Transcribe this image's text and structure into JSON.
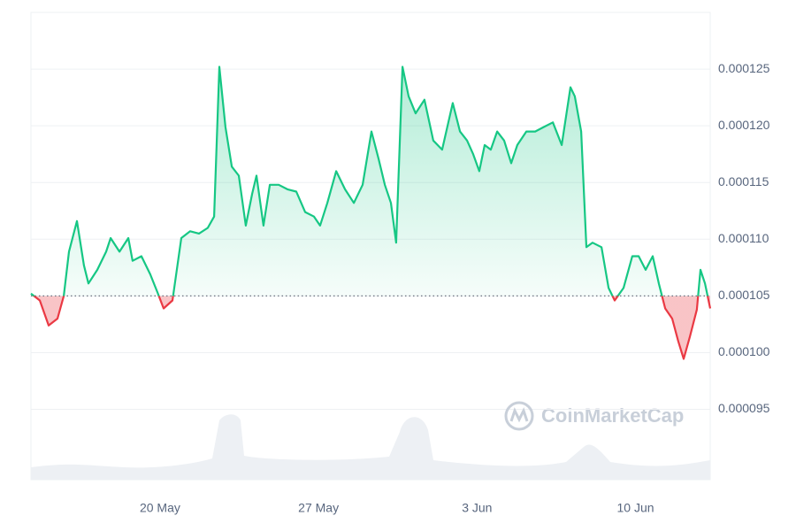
{
  "chart_data": {
    "type": "baseline-line",
    "x": [
      0,
      0.39,
      0.78,
      1.17,
      1.45,
      1.68,
      2.03,
      2.34,
      2.54,
      2.93,
      3.32,
      3.52,
      3.91,
      4.3,
      4.49,
      4.88,
      5.27,
      5.59,
      5.86,
      6.25,
      6.64,
      7.03,
      7.42,
      7.81,
      8.09,
      8.32,
      8.59,
      8.87,
      9.18,
      9.49,
      9.77,
      9.96,
      10.27,
      10.55,
      10.94,
      11.33,
      11.72,
      12.11,
      12.5,
      12.77,
      13.09,
      13.48,
      13.87,
      14.26,
      14.65,
      15.04,
      15.35,
      15.63,
      15.9,
      16.13,
      16.41,
      16.68,
      16.99,
      17.38,
      17.77,
      18.16,
      18.63,
      18.95,
      19.26,
      19.53,
      19.8,
      20.04,
      20.31,
      20.59,
      20.9,
      21.21,
      21.48,
      21.88,
      22.27,
      22.66,
      23.05,
      23.44,
      23.83,
      24.02,
      24.3,
      24.53,
      24.8,
      25.2,
      25.51,
      25.78,
      26.17,
      26.56,
      26.84,
      27.15,
      27.46,
      27.73,
      28.01,
      28.32,
      28.59,
      28.83,
      29.1,
      29.41,
      29.57,
      29.77,
      30
    ],
    "values": [
      0.0001052,
      0.0001046,
      0.0001024,
      0.000103,
      0.000105,
      0.0001089,
      0.0001116,
      0.0001077,
      0.0001061,
      0.0001073,
      0.0001089,
      0.0001101,
      0.0001089,
      0.0001101,
      0.0001081,
      0.0001085,
      0.0001069,
      0.0001053,
      0.0001039,
      0.0001046,
      0.0001101,
      0.0001107,
      0.0001105,
      0.000111,
      0.000112,
      0.0001252,
      0.0001199,
      0.0001164,
      0.0001156,
      0.0001112,
      0.000114,
      0.0001156,
      0.0001112,
      0.0001148,
      0.0001148,
      0.0001144,
      0.0001142,
      0.0001124,
      0.000112,
      0.0001112,
      0.0001132,
      0.000116,
      0.0001144,
      0.0001132,
      0.0001148,
      0.0001195,
      0.0001171,
      0.0001148,
      0.0001132,
      0.0001097,
      0.0001252,
      0.0001226,
      0.0001211,
      0.0001223,
      0.0001187,
      0.0001179,
      0.000122,
      0.0001195,
      0.0001187,
      0.0001175,
      0.000116,
      0.0001183,
      0.0001179,
      0.0001195,
      0.0001187,
      0.0001167,
      0.0001183,
      0.0001195,
      0.0001195,
      0.0001199,
      0.0001203,
      0.0001183,
      0.0001234,
      0.0001226,
      0.0001195,
      0.0001093,
      0.0001097,
      0.0001093,
      0.0001057,
      0.0001046,
      0.0001057,
      0.0001085,
      0.0001085,
      0.0001073,
      0.0001085,
      0.0001061,
      0.0001039,
      0.000103,
      0.000101,
      9.945e-05,
      0.0001014,
      0.0001038,
      0.0001073,
      0.0001061,
      0.0001039
    ],
    "baseline": 0.000105,
    "color_up": "#16c784",
    "color_down": "#ea3943",
    "xlim": [
      0,
      30
    ],
    "xticks": [
      {
        "value": 5.7,
        "label": "20 May"
      },
      {
        "value": 12.7,
        "label": "27 May"
      },
      {
        "value": 19.7,
        "label": "3 Jun"
      },
      {
        "value": 26.7,
        "label": "10 Jun"
      }
    ],
    "ylim": [
      8.88e-05,
      0.00013
    ],
    "yticks": [
      {
        "value": 9.5e-05,
        "label": "0.000095"
      },
      {
        "value": 0.0001,
        "label": "0.000100"
      },
      {
        "value": 0.000105,
        "label": "0.000105"
      },
      {
        "value": 0.00011,
        "label": "0.000110"
      },
      {
        "value": 0.000115,
        "label": "0.000115"
      },
      {
        "value": 0.00012,
        "label": "0.000120"
      },
      {
        "value": 0.000125,
        "label": "0.000125"
      }
    ],
    "grid": true,
    "watermark": "CoinMarketCap"
  }
}
